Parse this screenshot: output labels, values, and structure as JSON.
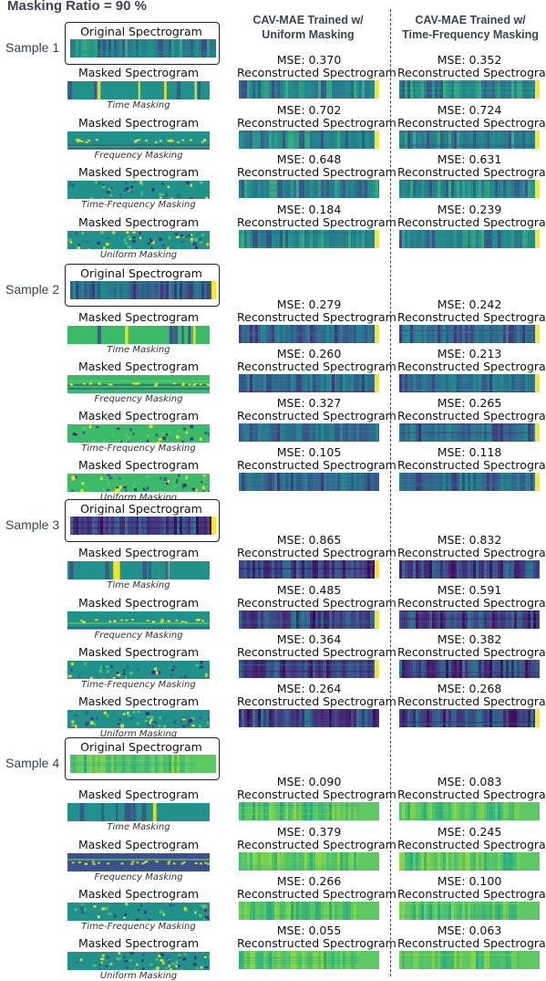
{
  "title": "Masking Ratio = 90 %",
  "columns": {
    "uniform": "CAV-MAE Trained w/\nUniform Masking",
    "tf": "CAV-MAE Trained w/\nTime-Frequency Masking"
  },
  "labels": {
    "original": "Original Spectrogram",
    "masked": "Masked Spectrogram",
    "reconstructed": "Reconstructed Spectrogram"
  },
  "mask_types": [
    "Time Masking",
    "Frequency Masking",
    "Time-Frequency Masking",
    "Uniform Masking"
  ],
  "samples": [
    {
      "name": "Sample 1",
      "mse_uniform": [
        "MSE: 0.370",
        "MSE: 0.702",
        "MSE: 0.648",
        "MSE: 0.184"
      ],
      "mse_tf": [
        "MSE: 0.352",
        "MSE: 0.724",
        "MSE: 0.631",
        "MSE: 0.239"
      ]
    },
    {
      "name": "Sample 2",
      "mse_uniform": [
        "MSE: 0.279",
        "MSE: 0.260",
        "MSE: 0.327",
        "MSE: 0.105"
      ],
      "mse_tf": [
        "MSE: 0.242",
        "MSE: 0.213",
        "MSE: 0.265",
        "MSE: 0.118"
      ]
    },
    {
      "name": "Sample 3",
      "mse_uniform": [
        "MSE: 0.865",
        "MSE: 0.485",
        "MSE: 0.364",
        "MSE: 0.264"
      ],
      "mse_tf": [
        "MSE: 0.832",
        "MSE: 0.591",
        "MSE: 0.382",
        "MSE: 0.268"
      ]
    },
    {
      "name": "Sample 4",
      "mse_uniform": [
        "MSE: 0.090",
        "MSE: 0.379",
        "MSE: 0.266",
        "MSE: 0.055"
      ],
      "mse_tf": [
        "MSE: 0.083",
        "MSE: 0.245",
        "MSE: 0.100",
        "MSE: 0.063"
      ]
    }
  ],
  "colors": {
    "teal": "#21918c",
    "green": "#3bbb6a",
    "dark_blue": "#3b528b",
    "purple": "#46257a",
    "yellow": "#fde725",
    "light_green": "#5ec962",
    "text": "#3b4450"
  }
}
